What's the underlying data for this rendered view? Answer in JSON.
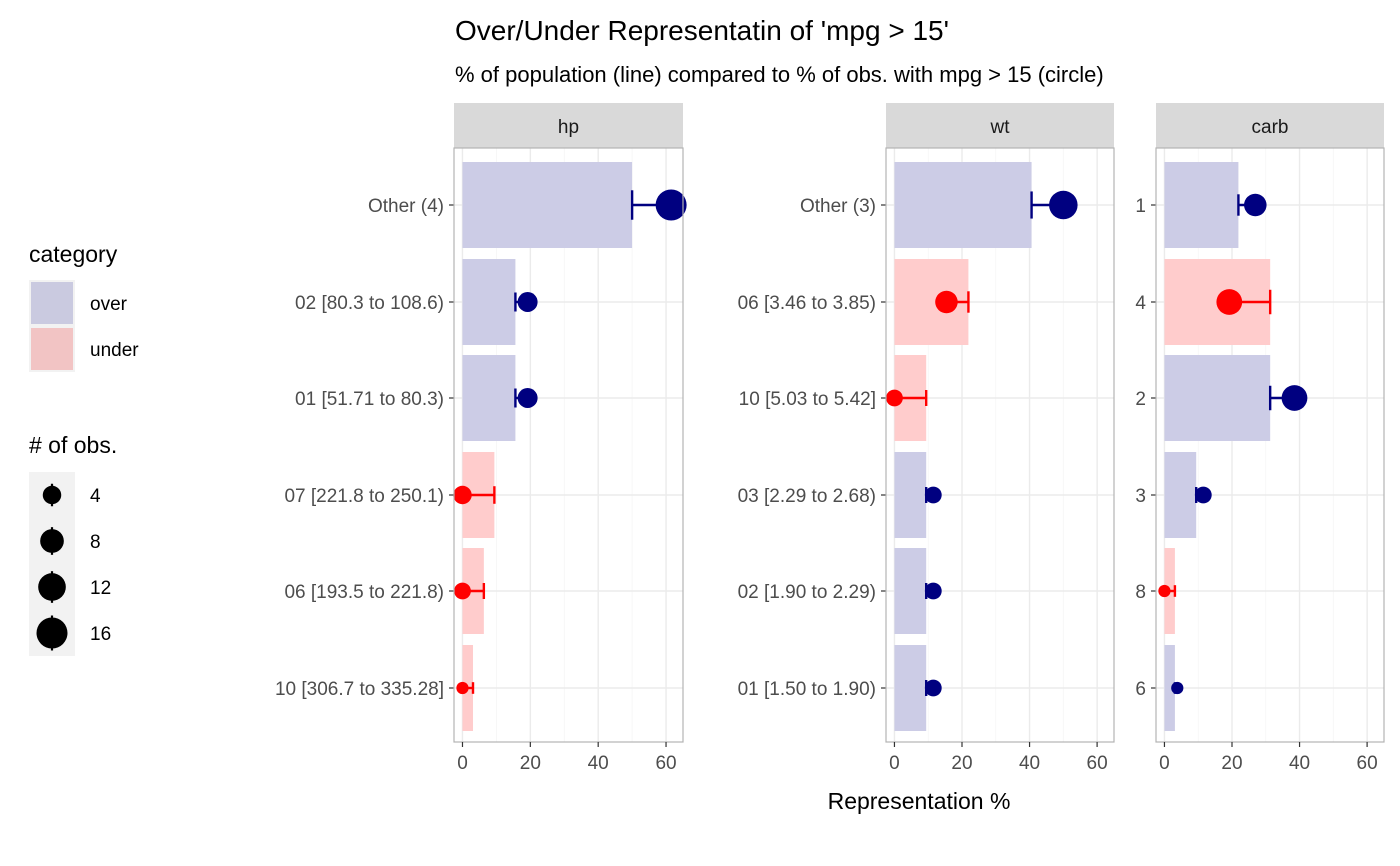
{
  "chart_data": {
    "type": "bar",
    "title": "Over/Under Representatin of 'mpg > 15'",
    "subtitle": "% of population (line) compared to % of obs. with mpg > 15 (circle)",
    "xlabel": "Representation %",
    "xlim": [
      -2.5,
      65
    ],
    "x_ticks": [
      0,
      20,
      40,
      60
    ],
    "grid": true,
    "legend_position": "left",
    "colors": {
      "over_bar": "#cccce6",
      "under_bar": "#ffcccc",
      "over_point": "#000080",
      "under_point": "#ff0000",
      "legend_over": "#cacae0",
      "legend_under": "#f2c4c4"
    },
    "legend": {
      "category": {
        "title": "category",
        "entries": [
          "over",
          "under"
        ]
      },
      "size": {
        "title": "# of obs.",
        "entries": [
          4,
          8,
          12,
          16
        ]
      }
    },
    "panels": [
      {
        "strip": "hp",
        "rows": [
          {
            "label": "Other (4)",
            "population_pct": 50,
            "obs_pct": 61.5,
            "n_obs": 16,
            "category": "over"
          },
          {
            "label": "02 [80.3 to 108.6)",
            "population_pct": 15.6,
            "obs_pct": 19.2,
            "n_obs": 5,
            "category": "over"
          },
          {
            "label": "01 [51.71 to 80.3)",
            "population_pct": 15.6,
            "obs_pct": 19.2,
            "n_obs": 5,
            "category": "over"
          },
          {
            "label": "07 [221.8 to 250.1)",
            "population_pct": 9.4,
            "obs_pct": 0,
            "n_obs": 4,
            "category": "under"
          },
          {
            "label": "06 [193.5 to 221.8)",
            "population_pct": 6.3,
            "obs_pct": 0,
            "n_obs": 3,
            "category": "under"
          },
          {
            "label": "10 [306.7 to 335.28]",
            "population_pct": 3.1,
            "obs_pct": 0,
            "n_obs": 1,
            "category": "under"
          }
        ]
      },
      {
        "strip": "wt",
        "rows": [
          {
            "label": "Other (3)",
            "population_pct": 40.6,
            "obs_pct": 50,
            "n_obs": 13,
            "category": "over"
          },
          {
            "label": "06 [3.46 to 3.85)",
            "population_pct": 21.9,
            "obs_pct": 15.4,
            "n_obs": 7,
            "category": "under"
          },
          {
            "label": "10 [5.03 to 5.42]",
            "population_pct": 9.4,
            "obs_pct": 0,
            "n_obs": 3,
            "category": "under"
          },
          {
            "label": "03 [2.29 to 2.68)",
            "population_pct": 9.4,
            "obs_pct": 11.5,
            "n_obs": 3,
            "category": "over"
          },
          {
            "label": "02 [1.90 to 2.29)",
            "population_pct": 9.4,
            "obs_pct": 11.5,
            "n_obs": 3,
            "category": "over"
          },
          {
            "label": "01 [1.50 to 1.90)",
            "population_pct": 9.4,
            "obs_pct": 11.5,
            "n_obs": 3,
            "category": "over"
          }
        ]
      },
      {
        "strip": "carb",
        "rows": [
          {
            "label": "1",
            "population_pct": 21.9,
            "obs_pct": 26.9,
            "n_obs": 7,
            "category": "over"
          },
          {
            "label": "4",
            "population_pct": 31.3,
            "obs_pct": 19.2,
            "n_obs": 10,
            "category": "under"
          },
          {
            "label": "2",
            "population_pct": 31.3,
            "obs_pct": 38.5,
            "n_obs": 10,
            "category": "over"
          },
          {
            "label": "3",
            "population_pct": 9.4,
            "obs_pct": 11.5,
            "n_obs": 3,
            "category": "over"
          },
          {
            "label": "8",
            "population_pct": 3.1,
            "obs_pct": 0,
            "n_obs": 1,
            "category": "under"
          },
          {
            "label": "6",
            "population_pct": 3.1,
            "obs_pct": 3.8,
            "n_obs": 1,
            "category": "over"
          }
        ]
      }
    ]
  }
}
